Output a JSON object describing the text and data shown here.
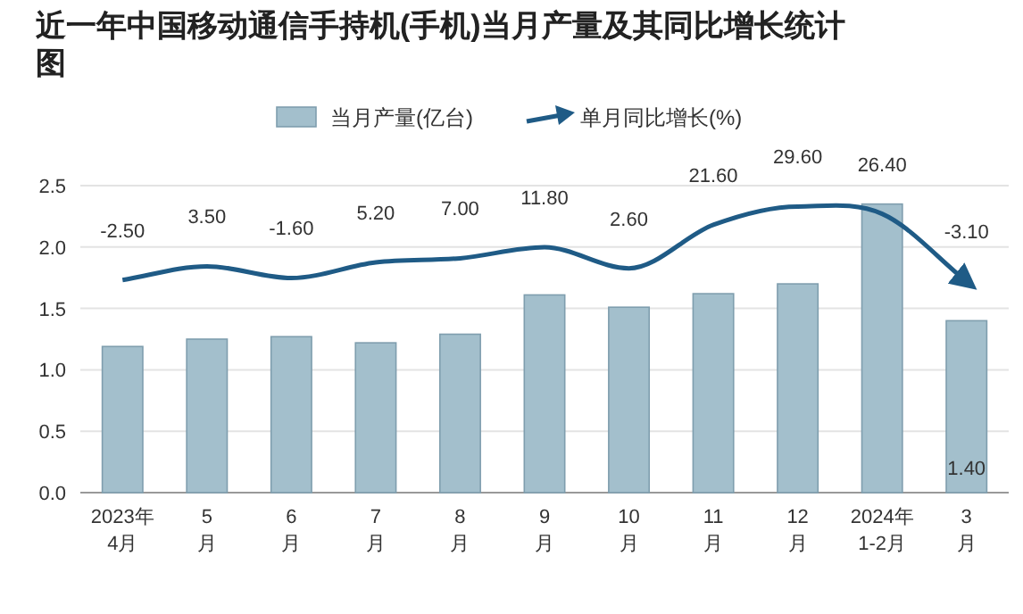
{
  "chart_data": {
    "type": "bar",
    "title": "近一年中国移动通信手持机(手机)当月产量及其同比增长统计图",
    "categories": [
      "2023年\n4月",
      "5\n月",
      "6\n月",
      "7\n月",
      "8\n月",
      "9\n月",
      "10\n月",
      "11\n月",
      "12\n月",
      "2024年\n1-2月",
      "3\n月"
    ],
    "ylim": [
      0,
      2.5
    ],
    "yticks": [
      {
        "value": 0,
        "label": "0.0"
      },
      {
        "value": 0.5,
        "label": "0.5"
      },
      {
        "value": 1,
        "label": "1.0"
      },
      {
        "value": 1.5,
        "label": "1.5"
      },
      {
        "value": 2,
        "label": "2.0"
      },
      {
        "value": 2.5,
        "label": "2.5"
      }
    ],
    "grid": "y",
    "legend": "top",
    "series": [
      {
        "name": "当月产量(亿台)",
        "color": "#a3bfcc",
        "values": [
          1.19,
          1.25,
          1.27,
          1.22,
          1.29,
          1.61,
          1.51,
          1.62,
          1.7,
          2.35,
          1.4
        ],
        "value_labels": [
          null,
          null,
          null,
          null,
          null,
          null,
          null,
          null,
          null,
          null,
          "1.40"
        ]
      },
      {
        "name": "单月同比增长(%)",
        "type": "line",
        "axis": "y2",
        "color": "#1f5b86",
        "values": [
          -2.5,
          3.5,
          -1.6,
          5.2,
          7.0,
          11.8,
          2.6,
          21.6,
          29.6,
          26.4,
          -3.1
        ],
        "value_labels": [
          "-2.50",
          "3.50",
          "-1.60",
          "5.20",
          "7.00",
          "11.80",
          "2.60",
          "21.60",
          "29.60",
          "26.40",
          "-3.10"
        ]
      }
    ]
  }
}
